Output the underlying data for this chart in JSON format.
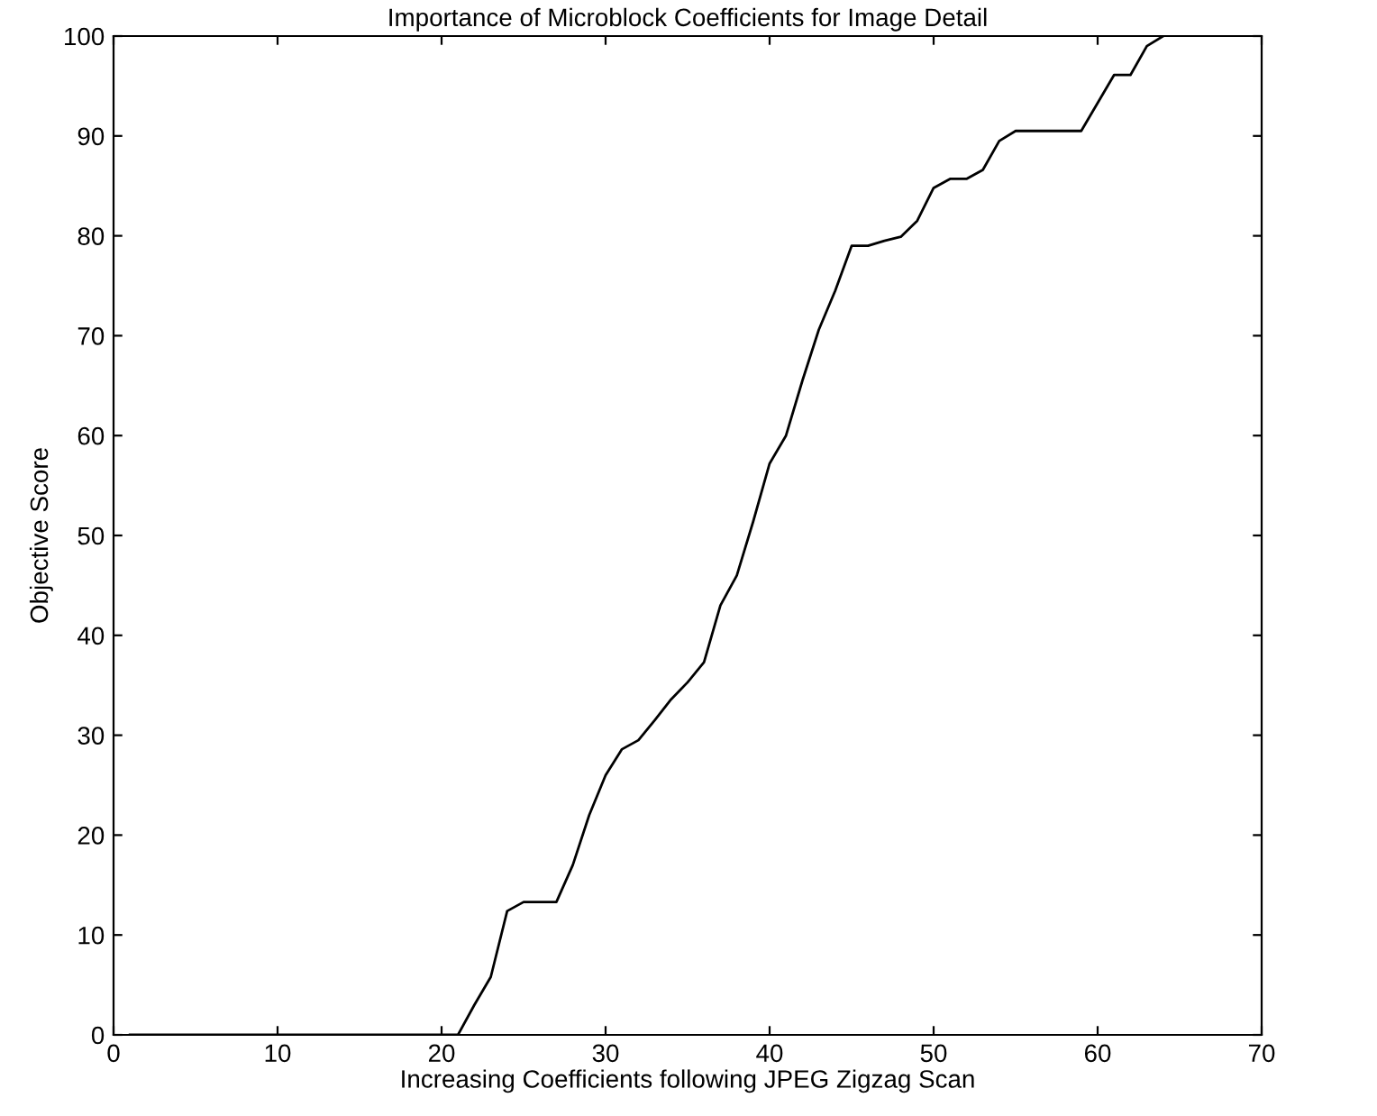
{
  "chart_data": {
    "type": "line",
    "title": "Importance of Microblock Coefficients for Image Detail",
    "xlabel": "Increasing Coefficients following JPEG Zigzag Scan",
    "ylabel": "Objective Score",
    "series": [
      {
        "color": "#000000",
        "x": [
          1,
          2,
          3,
          4,
          5,
          6,
          7,
          8,
          9,
          10,
          11,
          12,
          13,
          14,
          15,
          16,
          17,
          18,
          19,
          20,
          21,
          22,
          23,
          24,
          25,
          26,
          27,
          28,
          29,
          30,
          31,
          32,
          33,
          34,
          35,
          36,
          37,
          38,
          39,
          40,
          41,
          42,
          43,
          44,
          45,
          46,
          47,
          48,
          49,
          50,
          51,
          52,
          53,
          54,
          55,
          56,
          57,
          58,
          59,
          60,
          61,
          62,
          63,
          64
        ],
        "values": [
          0,
          0,
          0,
          0,
          0,
          0,
          0,
          0,
          0,
          0,
          0,
          0,
          0,
          0,
          0,
          0,
          0,
          0,
          0,
          0,
          0,
          3,
          5.8,
          12.4,
          13.3,
          13.3,
          13.3,
          17,
          22,
          26,
          28.6,
          29.5,
          31.5,
          33.6,
          35.3,
          37.3,
          43,
          46,
          51.4,
          57.2,
          60,
          65.5,
          70.6,
          74.5,
          79,
          79,
          79.5,
          79.9,
          81.5,
          84.8,
          85.7,
          85.7,
          86.6,
          89.5,
          90.5,
          90.5,
          90.5,
          90.5,
          90.5,
          93.3,
          96.1,
          96.1,
          99,
          100
        ]
      }
    ],
    "xlim": [
      0,
      70
    ],
    "ylim": [
      0,
      100
    ],
    "xticks": [
      0,
      10,
      20,
      30,
      40,
      50,
      60,
      70
    ],
    "yticks": [
      0,
      10,
      20,
      30,
      40,
      50,
      60,
      70,
      80,
      90,
      100
    ],
    "grid": false,
    "legend": false,
    "marker": "none",
    "line_style": "solid"
  }
}
